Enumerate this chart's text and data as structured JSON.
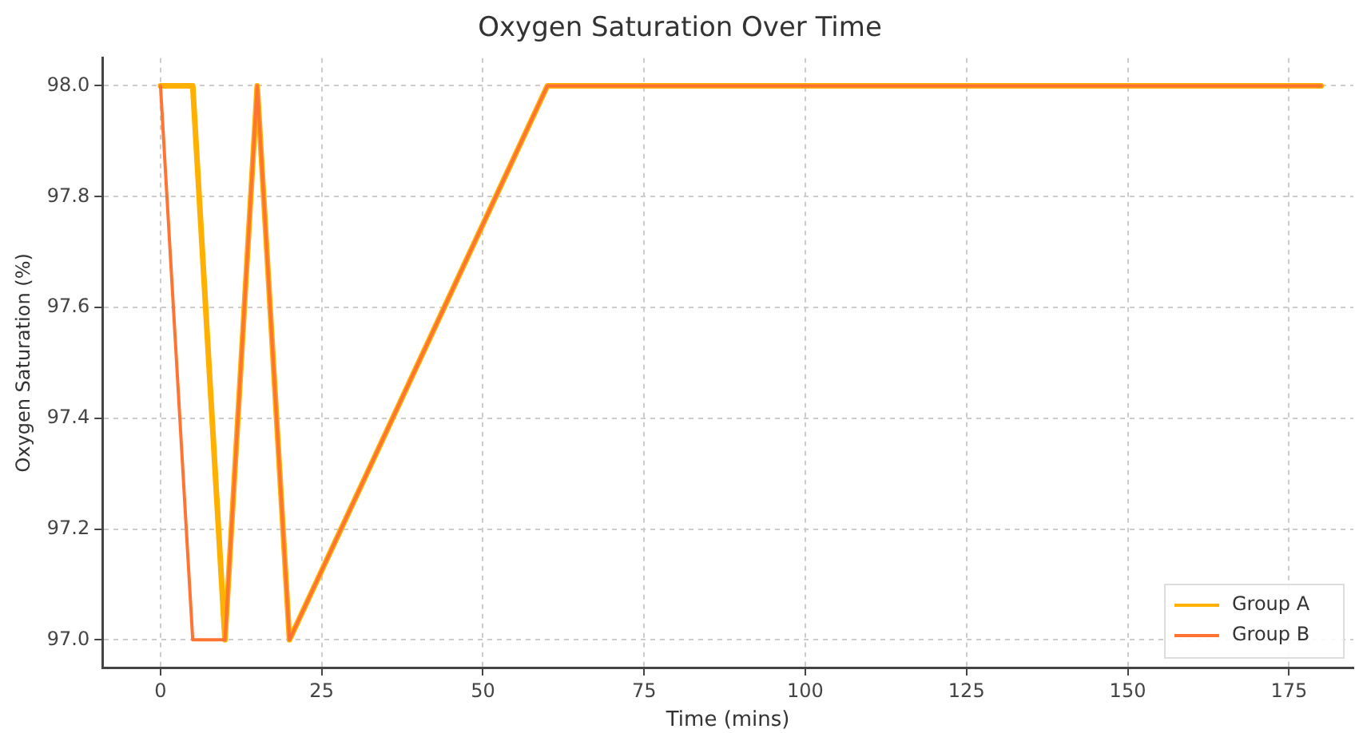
{
  "chart_data": {
    "type": "line",
    "title": "Oxygen Saturation Over Time",
    "xlabel": "Time (mins)",
    "ylabel": "Oxygen Saturation (%)",
    "x": [
      0,
      5,
      10,
      15,
      20,
      60,
      180
    ],
    "series": [
      {
        "name": "Group A",
        "color": "#ffb000",
        "values": [
          98,
          98,
          97,
          98,
          97,
          98,
          98
        ]
      },
      {
        "name": "Group B",
        "color": "#ff7433",
        "values": [
          98,
          97,
          97,
          98,
          97,
          98,
          98
        ]
      }
    ],
    "xlim": [
      -9,
      185
    ],
    "xticks": [
      0,
      25,
      50,
      75,
      100,
      125,
      150,
      175
    ],
    "ylim": [
      96.95,
      98.05
    ],
    "yticks": [
      {
        "value": 97,
        "label": "97.0"
      },
      {
        "value": 97.2,
        "label": "97.2"
      },
      {
        "value": 97.4,
        "label": "97.4"
      },
      {
        "value": 97.6,
        "label": "97.6"
      },
      {
        "value": 97.8,
        "label": "97.8"
      },
      {
        "value": 98,
        "label": "98.0"
      }
    ],
    "grid": true,
    "legend": "bottom right",
    "marker": "none",
    "line_style": "solid"
  }
}
